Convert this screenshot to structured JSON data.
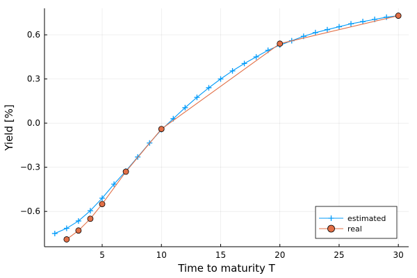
{
  "chart_data": {
    "type": "line",
    "title": "",
    "xlabel": "Time to maturity T",
    "ylabel": "Yield [%]",
    "xlim": [
      0.13,
      30.87
    ],
    "ylim": [
      -0.84,
      0.78
    ],
    "xticks": [
      5,
      10,
      15,
      20,
      25,
      30
    ],
    "xtick_labels": [
      "5",
      "10",
      "15",
      "20",
      "25",
      "30"
    ],
    "yticks": [
      -0.6,
      -0.3,
      0.0,
      0.3,
      0.6
    ],
    "ytick_labels": [
      "−0.6",
      "−0.3",
      "0.0",
      "0.3",
      "0.6"
    ],
    "grid": true,
    "legend_position": "bottom-right",
    "series": [
      {
        "name": "estimated",
        "color": "#009af9",
        "marker": "cross",
        "x": [
          1,
          2,
          3,
          4,
          5,
          6,
          7,
          8,
          9,
          10,
          11,
          12,
          13,
          14,
          15,
          16,
          17,
          18,
          19,
          20,
          21,
          22,
          23,
          24,
          25,
          26,
          27,
          28,
          29,
          30
        ],
        "y": [
          -0.75,
          -0.715,
          -0.665,
          -0.595,
          -0.51,
          -0.415,
          -0.325,
          -0.23,
          -0.135,
          -0.045,
          0.03,
          0.105,
          0.175,
          0.24,
          0.3,
          0.355,
          0.405,
          0.45,
          0.495,
          0.53,
          0.56,
          0.59,
          0.615,
          0.635,
          0.655,
          0.675,
          0.69,
          0.705,
          0.72,
          0.73
        ]
      },
      {
        "name": "real",
        "color": "#e26f46",
        "marker": "circle",
        "x": [
          2,
          3,
          4,
          5,
          7,
          10,
          20,
          30
        ],
        "y": [
          -0.79,
          -0.73,
          -0.65,
          -0.55,
          -0.33,
          -0.04,
          0.54,
          0.73
        ]
      }
    ]
  }
}
